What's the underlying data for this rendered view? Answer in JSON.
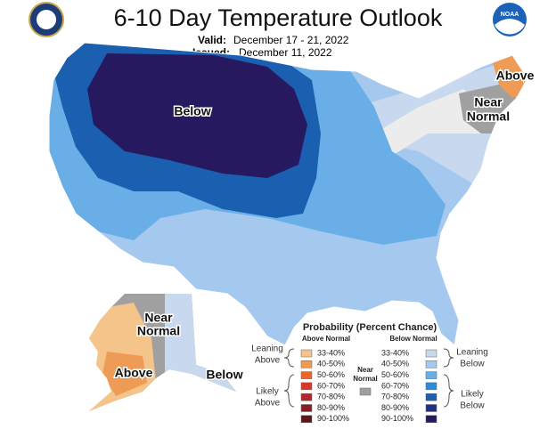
{
  "header": {
    "title": "6-10 Day Temperature Outlook",
    "valid_label": "Valid:",
    "valid": "December 17 - 21, 2022",
    "issued_label": "Issued:",
    "issued": "December 11, 2022",
    "logo_text": "NOAA"
  },
  "map_labels": [
    {
      "lines": [
        "Above"
      ]
    },
    {
      "lines": [
        "Near",
        "Normal"
      ]
    },
    {
      "lines": [
        "Below"
      ]
    },
    {
      "lines": [
        "Near",
        "Normal"
      ]
    },
    {
      "lines": [
        "Above"
      ]
    },
    {
      "lines": [
        "Below"
      ]
    }
  ],
  "legend": {
    "title": "Probability (Percent Chance)",
    "above_header": "Above Normal",
    "below_header": "Below Normal",
    "above_bins": [
      {
        "label": "33-40%",
        "color": "#f5c48a"
      },
      {
        "label": "40-50%",
        "color": "#ee9c55"
      },
      {
        "label": "50-60%",
        "color": "#e8662e"
      },
      {
        "label": "60-70%",
        "color": "#d9352b"
      },
      {
        "label": "70-80%",
        "color": "#b8222b"
      },
      {
        "label": "80-90%",
        "color": "#8a1d24"
      },
      {
        "label": "90-100%",
        "color": "#5e1518"
      }
    ],
    "below_bins": [
      {
        "label": "33-40%",
        "color": "#c8d8ef"
      },
      {
        "label": "40-50%",
        "color": "#a5c8ee"
      },
      {
        "label": "50-60%",
        "color": "#6aaee8"
      },
      {
        "label": "60-70%",
        "color": "#2a8bd6"
      },
      {
        "label": "70-80%",
        "color": "#1a5fb0"
      },
      {
        "label": "80-90%",
        "color": "#22308a"
      },
      {
        "label": "90-100%",
        "color": "#26195f"
      }
    ],
    "near_normal": {
      "lines": [
        "Near",
        "Normal"
      ],
      "color": "#a0a0a0"
    },
    "leaning_above": [
      "Leaning",
      "Above"
    ],
    "likely_above": [
      "Likely",
      "Above"
    ],
    "leaning_below": [
      "Leaning",
      "Below"
    ],
    "likely_below": [
      "Likely",
      "Below"
    ]
  }
}
